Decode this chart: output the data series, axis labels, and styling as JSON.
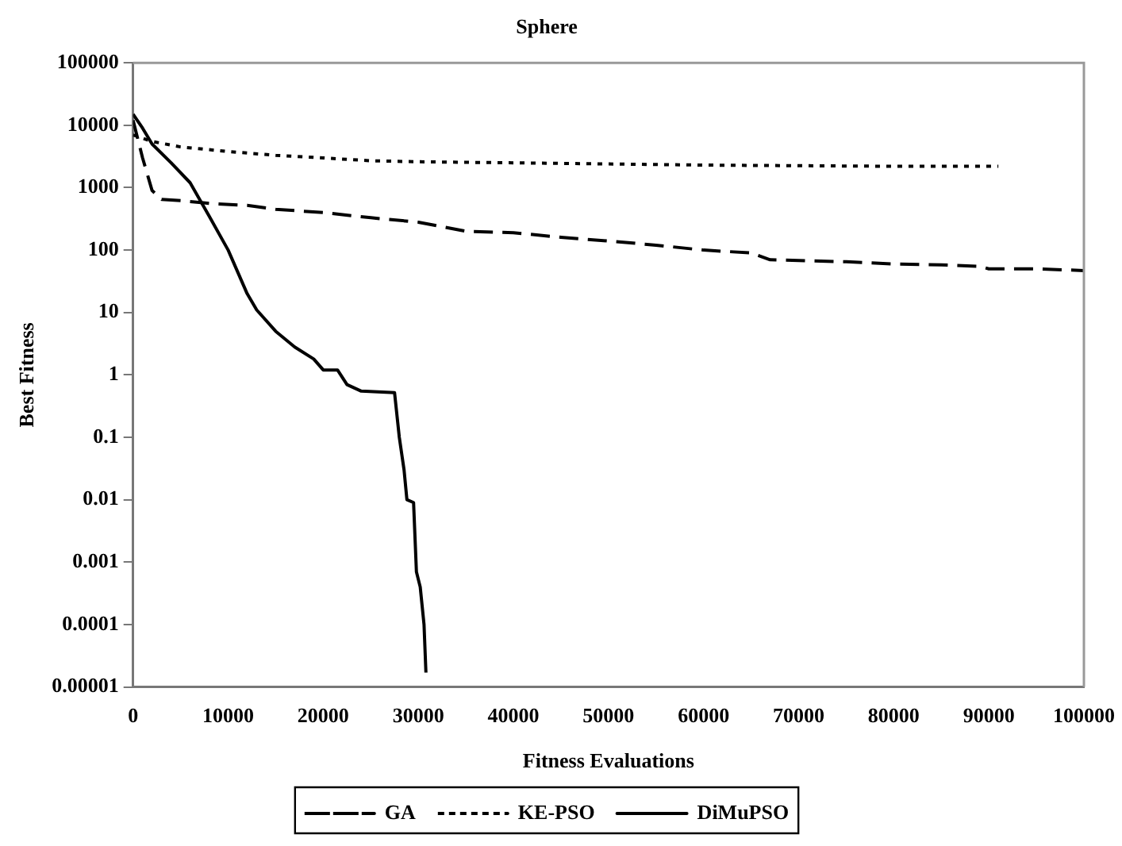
{
  "chart_data": {
    "type": "line",
    "title": "Sphere",
    "xlabel": "Fitness Evaluations",
    "ylabel": "Best Fitness",
    "log": "y",
    "grid": false,
    "legend": "bottom",
    "marker": "none",
    "xlim": [
      0,
      100000
    ],
    "xticks": [
      0,
      10000,
      20000,
      30000,
      40000,
      50000,
      60000,
      70000,
      80000,
      90000,
      100000
    ],
    "ylim": [
      1e-05,
      100000
    ],
    "yticks": [
      {
        "value": 1e-05,
        "label": "0.00001"
      },
      0.0001,
      0.001,
      0.01,
      0.1,
      1,
      10,
      100,
      1000,
      10000,
      100000
    ],
    "series": [
      {
        "name": "GA",
        "color": "#000000",
        "line_style": "dashed",
        "x": [
          0,
          1000,
          2000,
          3000,
          5000,
          8000,
          12000,
          15000,
          20000,
          25000,
          30000,
          35000,
          40000,
          45000,
          50000,
          55000,
          60000,
          65000,
          67000,
          75000,
          80000,
          85000,
          89000,
          90000,
          95000,
          100000
        ],
        "values": [
          12000,
          3000,
          900,
          650,
          620,
          560,
          520,
          450,
          400,
          330,
          280,
          200,
          190,
          160,
          140,
          120,
          100,
          90,
          70,
          65,
          60,
          58,
          55,
          50,
          50,
          47
        ]
      },
      {
        "name": "KE-PSO",
        "color": "#000000",
        "line_style": "dotted",
        "x": [
          0,
          2000,
          5000,
          10000,
          15000,
          20000,
          25000,
          30000,
          40000,
          60000,
          80000,
          91000
        ],
        "values": [
          7000,
          5500,
          4500,
          3800,
          3300,
          3000,
          2700,
          2600,
          2500,
          2300,
          2200,
          2200
        ]
      },
      {
        "name": "DiMuPSO",
        "color": "#000000",
        "line_style": "solid",
        "x": [
          0,
          1000,
          2000,
          4000,
          6000,
          8000,
          10000,
          12000,
          13000,
          15000,
          17000,
          19000,
          20000,
          21500,
          22500,
          24000,
          27500,
          28000,
          28500,
          28800,
          29500,
          29800,
          30200,
          30600,
          30800
        ],
        "values": [
          15000,
          9000,
          5000,
          2500,
          1200,
          350,
          100,
          20,
          11,
          5,
          2.8,
          1.8,
          1.2,
          1.2,
          0.7,
          0.55,
          0.52,
          0.1,
          0.03,
          0.01,
          0.009,
          0.0007,
          0.0004,
          0.0001,
          1.7e-05
        ]
      }
    ]
  }
}
